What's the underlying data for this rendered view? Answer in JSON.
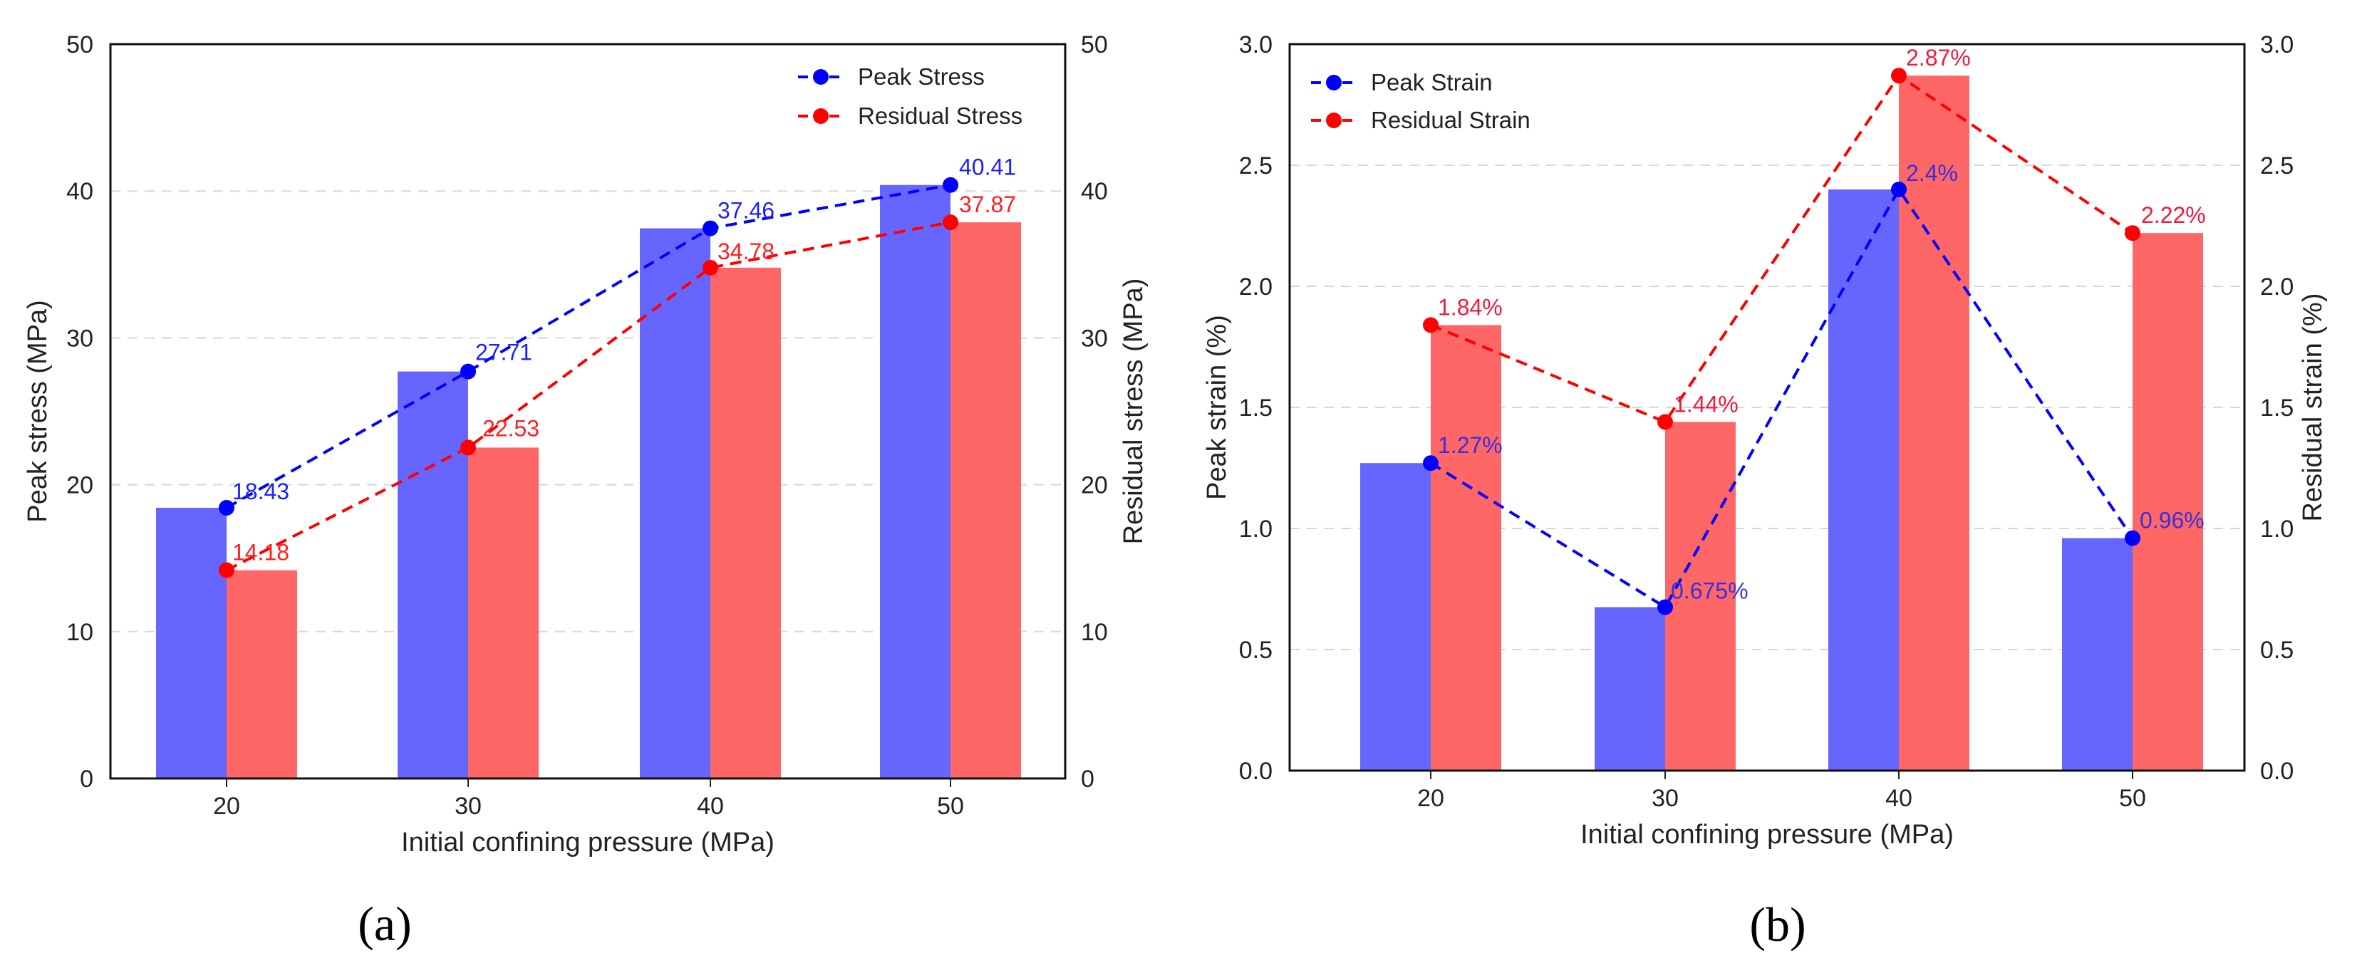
{
  "chart_data": [
    {
      "type": "bar",
      "panel_label": "(a)",
      "categories": [
        "20",
        "30",
        "40",
        "50"
      ],
      "xlabel": "Initial confining pressure (MPa)",
      "ylabel": "Peak stress (MPa)",
      "ylabel_right": "Residual stress (MPa)",
      "ylim": [
        0,
        50
      ],
      "y_ticks": [
        "0",
        "10",
        "20",
        "30",
        "40",
        "50"
      ],
      "grid": "horizontal dashed",
      "legend_position": "top-right",
      "series": [
        {
          "name": "Peak Stress",
          "values": [
            18.43,
            27.71,
            37.46,
            40.41
          ],
          "labels": [
            "18.43",
            "27.71",
            "37.46",
            "40.41"
          ],
          "bar_color": "#6666ff",
          "line_color": "#0000ff",
          "label_color": "#1f1fff"
        },
        {
          "name": "Residual Stress",
          "values": [
            14.18,
            22.53,
            34.78,
            37.87
          ],
          "labels": [
            "14.18",
            "22.53",
            "34.78",
            "37.87"
          ],
          "bar_color": "#ff6666",
          "line_color": "#ff0000",
          "label_color": "#ff1f1f"
        }
      ]
    },
    {
      "type": "bar",
      "panel_label": "(b)",
      "categories": [
        "20",
        "30",
        "40",
        "50"
      ],
      "xlabel": "Initial confining pressure (MPa)",
      "ylabel": "Peak strain (%)",
      "ylabel_right": "Residual strain (%)",
      "ylim": [
        0,
        3.0
      ],
      "y_ticks": [
        "0.0",
        "0.5",
        "1.0",
        "1.5",
        "2.0",
        "2.5",
        "3.0"
      ],
      "grid": "horizontal dashed",
      "legend_position": "top-left",
      "series": [
        {
          "name": "Peak Strain",
          "values": [
            1.27,
            0.675,
            2.4,
            0.96
          ],
          "labels": [
            "1.27%",
            "0.675%",
            "2.4%",
            "0.96%"
          ],
          "bar_color": "#6666ff",
          "line_color": "#0000ff",
          "label_color": "#3a2fe0"
        },
        {
          "name": "Residual Strain",
          "values": [
            1.84,
            1.44,
            2.87,
            2.22
          ],
          "labels": [
            "1.84%",
            "1.44%",
            "2.87%",
            "2.22%"
          ],
          "bar_color": "#ff6666",
          "line_color": "#ff0000",
          "label_color": "#ee1a3a"
        }
      ]
    }
  ]
}
